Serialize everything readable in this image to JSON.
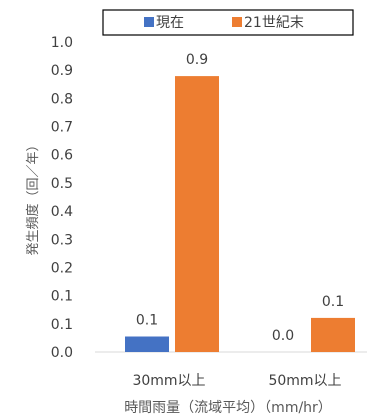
{
  "chart_data": {
    "type": "bar",
    "categories": [
      "30mm以上",
      "50mm以上"
    ],
    "series": [
      {
        "name": "現在",
        "values": [
          0.05,
          0.0
        ],
        "labels": [
          "0.1",
          "0.0"
        ],
        "color": "#4472c4"
      },
      {
        "name": "21世紀末",
        "values": [
          0.89,
          0.11
        ],
        "labels": [
          "0.9",
          "0.1"
        ],
        "color": "#ed7d31"
      }
    ],
    "yticks": [
      "0.0",
      "0.1",
      "0.1",
      "0.2",
      "0.3",
      "0.4",
      "0.5",
      "0.6",
      "0.7",
      "0.8",
      "0.9",
      "1.0"
    ],
    "ylim": [
      0,
      1.0
    ],
    "ylabel": "発生頻度（回／年）",
    "xlabel": "時間雨量（流域平均）（mm/hr）",
    "legend_position": "top"
  }
}
